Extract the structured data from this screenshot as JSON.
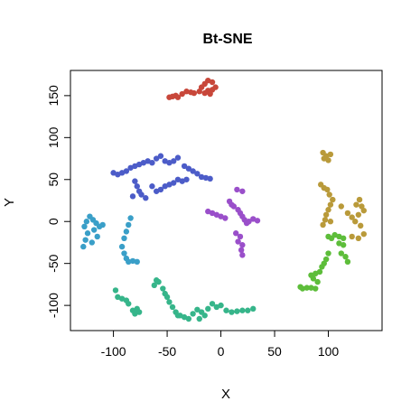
{
  "chart_data": {
    "type": "scatter",
    "title": "Bt-SNE",
    "xlabel": "X",
    "ylabel": "Y",
    "xlim": [
      -140,
      150
    ],
    "ylim": [
      -130,
      180
    ],
    "xticks": [
      -100,
      -50,
      0,
      50,
      100
    ],
    "yticks": [
      -100,
      -50,
      0,
      50,
      100,
      150
    ],
    "grid": false,
    "legend": "none",
    "series": [
      {
        "color": "#C8473A",
        "points": [
          [
            -48,
            148
          ],
          [
            -45,
            149
          ],
          [
            -42,
            150
          ],
          [
            -40,
            148
          ],
          [
            -36,
            152
          ],
          [
            -32,
            155
          ],
          [
            -28,
            154
          ],
          [
            -25,
            153
          ],
          [
            -20,
            155
          ],
          [
            -18,
            160
          ],
          [
            -15,
            164
          ],
          [
            -12,
            168
          ],
          [
            -8,
            166
          ],
          [
            -5,
            160
          ],
          [
            -8,
            157
          ],
          [
            -12,
            156
          ],
          [
            -15,
            153
          ],
          [
            -10,
            152
          ]
        ]
      },
      {
        "color": "#B99A3A",
        "points": [
          [
            95,
            82
          ],
          [
            98,
            78
          ],
          [
            102,
            80
          ],
          [
            96,
            75
          ],
          [
            100,
            73
          ],
          [
            93,
            44
          ],
          [
            96,
            40
          ],
          [
            99,
            38
          ],
          [
            101,
            32
          ],
          [
            104,
            26
          ],
          [
            102,
            20
          ],
          [
            100,
            14
          ],
          [
            98,
            8
          ],
          [
            97,
            2
          ],
          [
            102,
            0
          ],
          [
            95,
            -4
          ],
          [
            112,
            18
          ],
          [
            118,
            10
          ],
          [
            122,
            5
          ],
          [
            126,
            20
          ],
          [
            129,
            26
          ],
          [
            131,
            18
          ],
          [
            133,
            13
          ],
          [
            128,
            8
          ],
          [
            125,
            0
          ],
          [
            130,
            -5
          ],
          [
            133,
            -15
          ],
          [
            128,
            -20
          ],
          [
            122,
            -18
          ]
        ]
      },
      {
        "color": "#5DBD3A",
        "points": [
          [
            100,
            -18
          ],
          [
            103,
            -20
          ],
          [
            106,
            -16
          ],
          [
            110,
            -18
          ],
          [
            114,
            -20
          ],
          [
            110,
            -26
          ],
          [
            114,
            -28
          ],
          [
            112,
            -38
          ],
          [
            116,
            -42
          ],
          [
            118,
            -48
          ],
          [
            100,
            -38
          ],
          [
            98,
            -45
          ],
          [
            96,
            -50
          ],
          [
            94,
            -54
          ],
          [
            92,
            -60
          ],
          [
            88,
            -62
          ],
          [
            86,
            -68
          ],
          [
            84,
            -64
          ],
          [
            90,
            -72
          ],
          [
            88,
            -80
          ],
          [
            84,
            -79
          ],
          [
            80,
            -79
          ],
          [
            76,
            -80
          ],
          [
            74,
            -78
          ]
        ]
      },
      {
        "color": "#36B58A",
        "points": [
          [
            -98,
            -82
          ],
          [
            -96,
            -90
          ],
          [
            -92,
            -92
          ],
          [
            -88,
            -94
          ],
          [
            -86,
            -98
          ],
          [
            -82,
            -106
          ],
          [
            -78,
            -104
          ],
          [
            -76,
            -108
          ],
          [
            -80,
            -110
          ],
          [
            -60,
            -70
          ],
          [
            -58,
            -72
          ],
          [
            -62,
            -76
          ],
          [
            -54,
            -80
          ],
          [
            -52,
            -86
          ],
          [
            -50,
            -90
          ],
          [
            -48,
            -96
          ],
          [
            -45,
            -102
          ],
          [
            -42,
            -108
          ],
          [
            -38,
            -112
          ],
          [
            -34,
            -114
          ],
          [
            -30,
            -116
          ],
          [
            -26,
            -110
          ],
          [
            -22,
            -105
          ],
          [
            -18,
            -108
          ],
          [
            -15,
            -112
          ],
          [
            -12,
            -104
          ],
          [
            -8,
            -98
          ],
          [
            -4,
            -102
          ],
          [
            0,
            -100
          ],
          [
            5,
            -106
          ],
          [
            10,
            -108
          ],
          [
            15,
            -107
          ],
          [
            20,
            -106
          ],
          [
            25,
            -106
          ],
          [
            30,
            -104
          ],
          [
            -20,
            -116
          ],
          [
            -40,
            -112
          ]
        ]
      },
      {
        "color": "#3A9FC8",
        "points": [
          [
            -128,
            -30
          ],
          [
            -126,
            -22
          ],
          [
            -124,
            -14
          ],
          [
            -127,
            -6
          ],
          [
            -125,
            0
          ],
          [
            -122,
            6
          ],
          [
            -119,
            2
          ],
          [
            -116,
            -2
          ],
          [
            -113,
            -6
          ],
          [
            -110,
            -4
          ],
          [
            -118,
            -10
          ],
          [
            -115,
            -18
          ],
          [
            -120,
            -25
          ],
          [
            -90,
            -20
          ],
          [
            -88,
            -12
          ],
          [
            -86,
            -4
          ],
          [
            -84,
            4
          ],
          [
            -92,
            -30
          ],
          [
            -90,
            -38
          ],
          [
            -88,
            -44
          ],
          [
            -86,
            -48
          ],
          [
            -82,
            -47
          ],
          [
            -78,
            -48
          ]
        ]
      },
      {
        "color": "#4C5CC8",
        "points": [
          [
            -100,
            58
          ],
          [
            -96,
            56
          ],
          [
            -92,
            58
          ],
          [
            -88,
            60
          ],
          [
            -84,
            64
          ],
          [
            -80,
            66
          ],
          [
            -76,
            68
          ],
          [
            -72,
            70
          ],
          [
            -68,
            72
          ],
          [
            -64,
            70
          ],
          [
            -60,
            75
          ],
          [
            -56,
            78
          ],
          [
            -52,
            72
          ],
          [
            -48,
            70
          ],
          [
            -44,
            72
          ],
          [
            -40,
            76
          ],
          [
            -34,
            66
          ],
          [
            -30,
            63
          ],
          [
            -26,
            60
          ],
          [
            -22,
            57
          ],
          [
            -18,
            53
          ],
          [
            -14,
            52
          ],
          [
            -10,
            51
          ],
          [
            -80,
            48
          ],
          [
            -78,
            42
          ],
          [
            -76,
            36
          ],
          [
            -82,
            30
          ],
          [
            -74,
            32
          ],
          [
            -70,
            28
          ],
          [
            -64,
            42
          ],
          [
            -60,
            36
          ],
          [
            -56,
            38
          ],
          [
            -52,
            42
          ],
          [
            -48,
            44
          ],
          [
            -44,
            46
          ],
          [
            -40,
            50
          ],
          [
            -36,
            48
          ],
          [
            -32,
            50
          ]
        ]
      },
      {
        "color": "#9A4FCA",
        "points": [
          [
            -12,
            12
          ],
          [
            -8,
            10
          ],
          [
            -4,
            8
          ],
          [
            0,
            6
          ],
          [
            4,
            4
          ],
          [
            8,
            24
          ],
          [
            10,
            20
          ],
          [
            12,
            18
          ],
          [
            16,
            14
          ],
          [
            18,
            10
          ],
          [
            20,
            6
          ],
          [
            22,
            2
          ],
          [
            24,
            -2
          ],
          [
            26,
            0
          ],
          [
            30,
            3
          ],
          [
            34,
            1
          ],
          [
            15,
            38
          ],
          [
            20,
            36
          ],
          [
            14,
            -14
          ],
          [
            18,
            -18
          ],
          [
            16,
            -24
          ],
          [
            20,
            -28
          ],
          [
            19,
            -34
          ],
          [
            20,
            -40
          ]
        ]
      }
    ]
  }
}
